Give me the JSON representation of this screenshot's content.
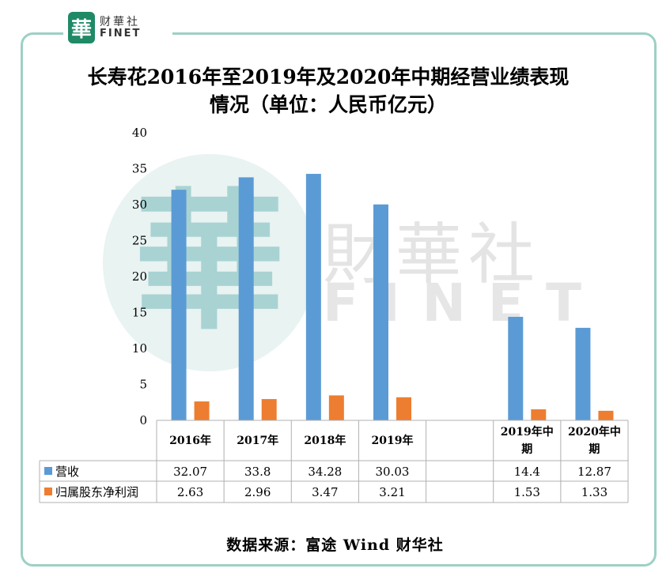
{
  "logo": {
    "mark": "華",
    "cn": "财華社",
    "en": "FINET"
  },
  "title": {
    "line1": "长寿花2016年至2019年及2020年中期经营业绩表现",
    "line2": "情况（单位：人民币亿元）"
  },
  "watermark": {
    "cn": "財華社",
    "en": "FINET"
  },
  "source": "数据来源：富途 Wind 财华社",
  "colors": {
    "revenue": "#5b9bd5",
    "profit": "#ed7d31",
    "frame": "#9ed0c4"
  },
  "chart_data": {
    "type": "bar",
    "categories": [
      "2016年",
      "2017年",
      "2018年",
      "2019年",
      "",
      "2019年中期",
      "2020年中期"
    ],
    "series": [
      {
        "name": "营收",
        "values": [
          32.07,
          33.8,
          34.28,
          30.03,
          null,
          14.4,
          12.87
        ],
        "labels": [
          "32.07",
          "33.8",
          "34.28",
          "30.03",
          "",
          "14.4",
          "12.87"
        ],
        "color": "#5b9bd5"
      },
      {
        "name": "归属股东净利润",
        "values": [
          2.63,
          2.96,
          3.47,
          3.21,
          null,
          1.53,
          1.33
        ],
        "labels": [
          "2.63",
          "2.96",
          "3.47",
          "3.21",
          "",
          "1.53",
          "1.33"
        ],
        "color": "#ed7d31"
      }
    ],
    "ylim": [
      0,
      40
    ],
    "yticks": [
      0,
      5,
      10,
      15,
      20,
      25,
      30,
      35,
      40
    ],
    "grid": false,
    "legend": "data table"
  }
}
